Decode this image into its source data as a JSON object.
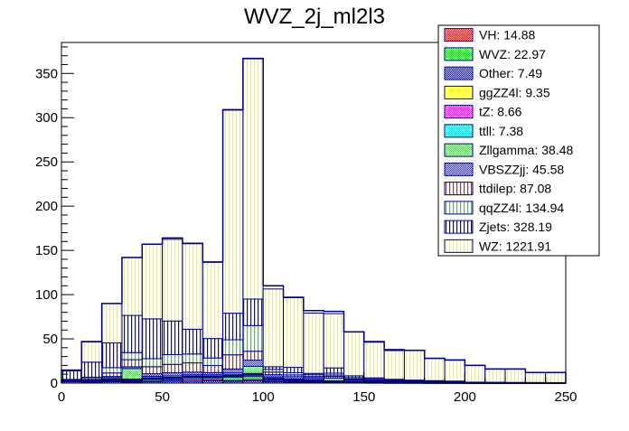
{
  "chart_data": {
    "type": "bar",
    "stacked": true,
    "title": "WVZ_2j_ml2l3",
    "xlabel": "",
    "ylabel": "",
    "xlim": [
      0,
      250
    ],
    "ylim": [
      0,
      385
    ],
    "bin_width": 10,
    "x_ticks": [
      "0",
      "50",
      "100",
      "150",
      "200",
      "250"
    ],
    "y_ticks": [
      "0",
      "50",
      "100",
      "150",
      "200",
      "250",
      "300",
      "350"
    ],
    "bin_edges": [
      0,
      10,
      20,
      30,
      40,
      50,
      60,
      70,
      80,
      90,
      100,
      110,
      120,
      130,
      140,
      150,
      160,
      170,
      180,
      190,
      200,
      210,
      220,
      230,
      240,
      250
    ],
    "legend_position": "top-right",
    "series": [
      {
        "name": "Other",
        "label": "Other: 7.49",
        "color": "#0000aa",
        "pattern": "checker",
        "values": [
          1.5,
          1.0,
          1.5,
          1.0,
          1.5,
          2.0,
          2.0,
          2.5,
          2.0,
          2.5,
          1.5,
          1.0,
          0.8,
          0.7,
          0.5,
          0.4,
          0.3,
          0.3,
          0.2,
          0.2,
          0.1,
          0.1,
          0.1,
          0.1,
          0.1
        ]
      },
      {
        "name": "VH",
        "label": "VH: 14.88",
        "color": "#dd2222",
        "pattern": "checker",
        "values": [
          0.5,
          0.5,
          1.0,
          1.0,
          1.5,
          1.5,
          2.0,
          1.5,
          1.0,
          1.5,
          0.8,
          0.5,
          0.4,
          0.3,
          0.2,
          0.2,
          0.1,
          0.1,
          0.1,
          0.1,
          0.0,
          0.0,
          0.0,
          0.0,
          0.0
        ]
      },
      {
        "name": "WVZ",
        "label": "WVZ: 22.97",
        "color": "#22cc22",
        "pattern": "checker",
        "values": [
          0.3,
          0.5,
          0.8,
          1.0,
          1.5,
          1.5,
          2.0,
          2.0,
          3.5,
          3.5,
          1.5,
          1.0,
          0.8,
          0.8,
          0.5,
          0.4,
          0.3,
          0.3,
          0.2,
          0.2,
          0.1,
          0.1,
          0.1,
          0.1,
          0.1
        ]
      },
      {
        "name": "ggZZ4l",
        "label": "ggZZ4l: 9.35",
        "color": "#ffff44",
        "pattern": "checker",
        "values": [
          0.2,
          0.3,
          0.5,
          0.5,
          0.5,
          0.5,
          0.6,
          0.6,
          1.2,
          1.5,
          0.6,
          0.4,
          0.3,
          0.3,
          0.2,
          0.2,
          0.1,
          0.1,
          0.1,
          0.1,
          0.0,
          0.0,
          0.0,
          0.0,
          0.0
        ]
      },
      {
        "name": "tZ",
        "label": "tZ: 8.66",
        "color": "#dd22dd",
        "pattern": "checker",
        "values": [
          0.1,
          0.2,
          0.4,
          0.5,
          0.6,
          0.7,
          0.7,
          0.7,
          1.0,
          1.0,
          0.6,
          0.5,
          0.4,
          0.3,
          0.2,
          0.2,
          0.1,
          0.1,
          0.1,
          0.1,
          0.0,
          0.0,
          0.0,
          0.0,
          0.0
        ]
      },
      {
        "name": "ttll",
        "label": "ttll: 7.38",
        "color": "#22dddd",
        "pattern": "checker",
        "values": [
          0.1,
          0.2,
          0.3,
          0.5,
          0.5,
          0.5,
          0.6,
          0.6,
          0.8,
          1.0,
          0.5,
          0.4,
          0.3,
          0.3,
          0.2,
          0.2,
          0.1,
          0.1,
          0.1,
          0.1,
          0.0,
          0.0,
          0.0,
          0.0,
          0.0
        ]
      },
      {
        "name": "Zllgamma",
        "label": "Zllgamma: 38.48",
        "color": "#66cc66",
        "pattern": "checker",
        "values": [
          0.3,
          0.5,
          1.5,
          12.0,
          1.5,
          1.5,
          1.5,
          1.5,
          2.0,
          8.0,
          1.5,
          1.0,
          1.0,
          3.0,
          0.5,
          0.5,
          0.3,
          0.2,
          0.1,
          0.1,
          0.0,
          0.0,
          0.0,
          0.0,
          0.0
        ]
      },
      {
        "name": "VBSZZjj",
        "label": "VBSZZjj: 45.58",
        "color": "#3333cc",
        "pattern": "checker",
        "values": [
          0.2,
          0.5,
          1.5,
          2.0,
          3.0,
          3.5,
          3.0,
          2.5,
          4.5,
          7.0,
          2.5,
          2.5,
          2.0,
          2.0,
          1.5,
          1.2,
          1.0,
          0.8,
          0.6,
          0.5,
          0.4,
          0.3,
          0.2,
          0.2,
          0.1
        ]
      },
      {
        "name": "ttdilep",
        "label": "ttdilep: 87.08",
        "color": "#dd2222",
        "pattern": "vlines",
        "values": [
          0.5,
          1.5,
          4.0,
          8.0,
          8.0,
          9.5,
          10.5,
          8.0,
          16.0,
          10.0,
          3.0,
          2.0,
          1.5,
          1.5,
          1.0,
          0.8,
          0.5,
          0.4,
          0.3,
          0.2,
          0.0,
          0.0,
          0.0,
          0.0,
          0.0
        ]
      },
      {
        "name": "qqZZ4l",
        "label": "qqZZ4l: 134.94",
        "color": "#22dd22",
        "pattern": "vlines",
        "values": [
          0.5,
          1.5,
          6.0,
          8.0,
          9.0,
          11.0,
          10.0,
          8.5,
          17.0,
          29.0,
          3.0,
          2.5,
          2.0,
          2.0,
          1.5,
          1.5,
          1.0,
          0.8,
          0.8,
          0.7,
          0.5,
          0.5,
          0.4,
          0.3,
          0.3
        ]
      },
      {
        "name": "Zjets",
        "label": "Zjets: 328.19",
        "color": "#0000ee",
        "pattern": "vlines",
        "values": [
          10.0,
          17.0,
          28.0,
          42.0,
          45.0,
          38.0,
          28.0,
          22.0,
          30.0,
          30.0,
          3.0,
          6.0,
          1.5,
          6.0,
          2.0,
          0.3,
          0.5,
          0.2,
          0.2,
          0.0,
          0.0,
          0.0,
          0.0,
          0.0,
          0.0
        ]
      },
      {
        "name": "WZ",
        "label": "WZ: 1221.91",
        "color": "#ffff00",
        "pattern": "vlines",
        "values": [
          0.8,
          22.8,
          44.5,
          65.5,
          84.4,
          92.3,
          96.6,
          86.1,
          229.5,
          271.5,
          87.9,
          78.7,
          68.1,
          61.3,
          49.7,
          40.3,
          33.8,
          33.9,
          25.4,
          24.1,
          19.0,
          15.1,
          15.2,
          11.3,
          11.4
        ]
      }
    ],
    "totals": [
      14,
      47,
      90,
      142,
      157,
      164,
      158,
      137,
      309,
      367,
      110,
      97,
      82,
      81,
      58,
      47,
      37,
      37,
      28,
      26,
      20,
      16,
      16,
      12,
      12
    ]
  }
}
